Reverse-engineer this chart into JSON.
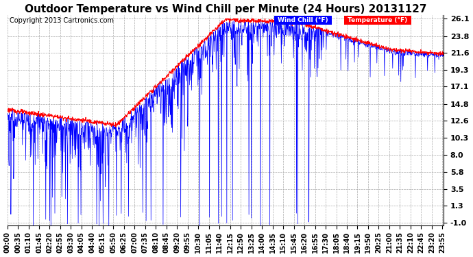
{
  "title": "Outdoor Temperature vs Wind Chill per Minute (24 Hours) 20131127",
  "copyright": "Copyright 2013 Cartronics.com",
  "ylabel_right_ticks": [
    26.1,
    23.8,
    21.6,
    19.3,
    17.1,
    14.8,
    12.6,
    10.3,
    8.0,
    5.8,
    3.5,
    1.3,
    -1.0
  ],
  "ymin": -1.0,
  "ymax": 26.1,
  "bg_color": "#ffffff",
  "plot_bg_color": "#ffffff",
  "grid_color": "#aaaaaa",
  "temp_color": "#ff0000",
  "windchill_color": "#0000ff",
  "legend_windchill_bg": "#0000ff",
  "legend_temp_bg": "#ff0000",
  "title_fontsize": 11,
  "copyright_fontsize": 7,
  "x_tick_fontsize": 7,
  "y_tick_fontsize": 8,
  "x_tick_interval_min": 35
}
